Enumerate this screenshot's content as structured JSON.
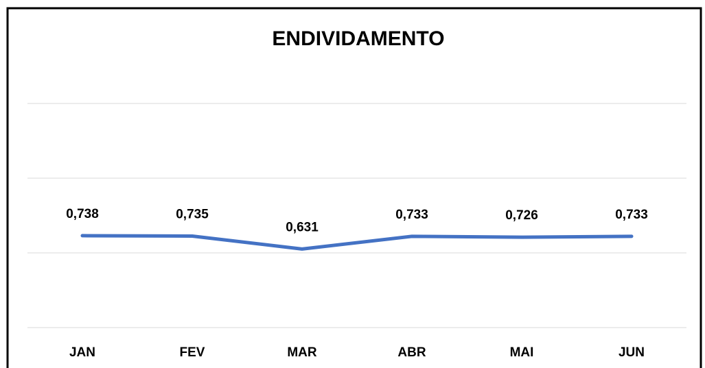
{
  "chart_data": {
    "type": "line",
    "title": "ENDIVIDAMENTO",
    "categories": [
      "JAN",
      "FEV",
      "MAR",
      "ABR",
      "MAI",
      "JUN"
    ],
    "values": [
      0.738,
      0.735,
      0.631,
      0.733,
      0.726,
      0.733
    ],
    "value_labels": [
      "0,738",
      "0,735",
      "0,631",
      "0,733",
      "0,726",
      "0,733"
    ],
    "color": "#4472c4",
    "ylim": [
      0,
      1.8
    ],
    "yticks": [
      0,
      0.6,
      1.2,
      1.8
    ],
    "grid": true
  }
}
